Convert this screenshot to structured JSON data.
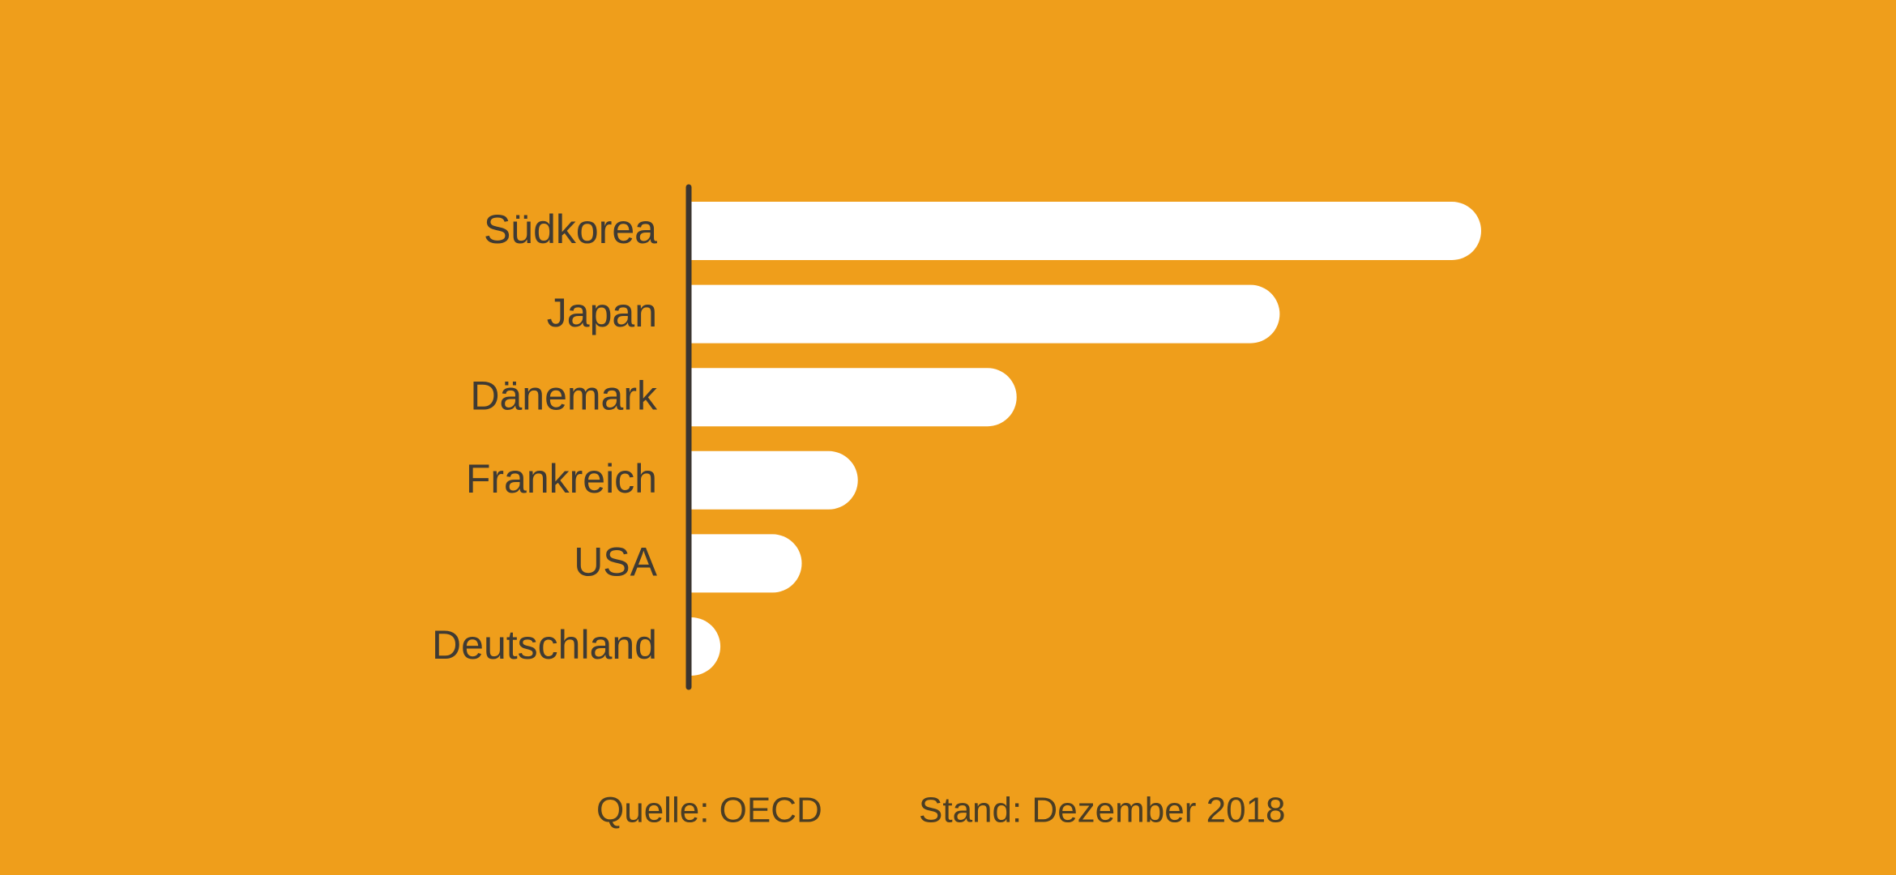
{
  "chart_data": {
    "type": "bar",
    "orientation": "horizontal",
    "categories": [
      "Südkorea",
      "Japan",
      "Dänemark",
      "Frankreich",
      "USA",
      "Deutschland"
    ],
    "values": [
      100,
      74.5,
      41.2,
      21.1,
      14.0,
      3.7
    ],
    "color": "#ffffff",
    "xlim": [
      0,
      100
    ],
    "grid": false,
    "source": "Quelle: OECD",
    "date_note": "Stand: Dezember 2018"
  }
}
